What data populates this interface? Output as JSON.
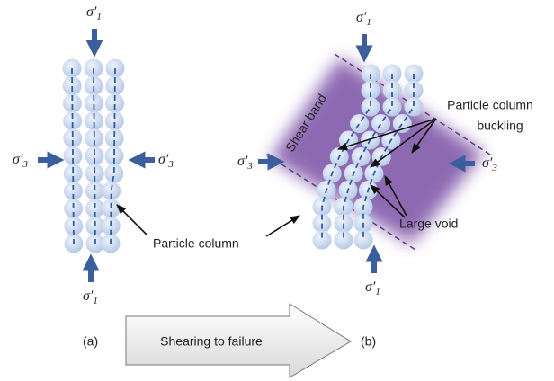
{
  "panel_a": {
    "label": "(a)",
    "annotation": "Particle column"
  },
  "panel_b": {
    "label": "(b)",
    "band": "Shear band",
    "buckling": [
      "Particle column",
      "buckling"
    ],
    "void": "Large void"
  },
  "stress": {
    "major": {
      "symbol": "σ′",
      "subscript": "1"
    },
    "minor": {
      "symbol": "σ′",
      "subscript": "3"
    }
  },
  "process": "Shearing to failure"
}
